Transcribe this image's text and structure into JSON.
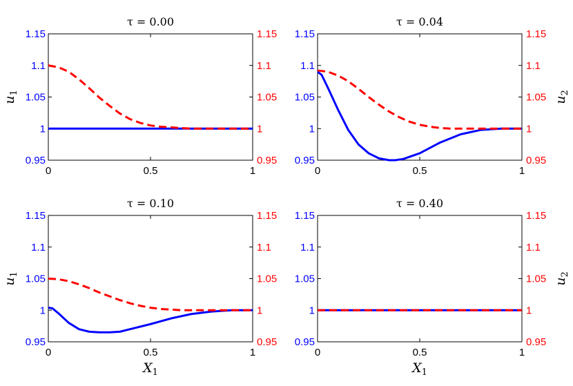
{
  "chart_data": [
    {
      "type": "line",
      "title": "τ = 0.00",
      "x_range": [
        0,
        1
      ],
      "x_ticks": [
        "0",
        "0.5",
        "1"
      ],
      "xlabel": "",
      "ylabel_left": "u",
      "ylabel_left_sub": "1",
      "ylabel_right": "",
      "ylabel_right_sub": "",
      "y_range": [
        0.95,
        1.15
      ],
      "y_ticks": [
        "0.95",
        "1",
        "1.05",
        "1.1",
        "1.15"
      ],
      "grid": false,
      "series": [
        {
          "axis": "left",
          "color": "#0000ff",
          "style": "solid",
          "x": [
            0,
            0.1,
            0.2,
            0.3,
            0.4,
            0.5,
            0.6,
            0.7,
            0.8,
            0.9,
            1
          ],
          "y": [
            1,
            1,
            1,
            1,
            1,
            1,
            1,
            1,
            1,
            1,
            1
          ]
        },
        {
          "axis": "right",
          "color": "#ff0000",
          "style": "dashed",
          "x": [
            0,
            0.05,
            0.1,
            0.15,
            0.2,
            0.25,
            0.3,
            0.35,
            0.4,
            0.45,
            0.5,
            0.55,
            0.6,
            0.65,
            0.7,
            0.8,
            0.9,
            1
          ],
          "y": [
            1.1,
            1.097,
            1.09,
            1.078,
            1.064,
            1.049,
            1.036,
            1.024,
            1.015,
            1.009,
            1.005,
            1.003,
            1.002,
            1.001,
            1,
            1,
            1,
            1
          ]
        }
      ]
    },
    {
      "type": "line",
      "title": "τ = 0.04",
      "x_range": [
        0,
        1
      ],
      "x_ticks": [
        "0",
        "0.5",
        "1"
      ],
      "xlabel": "",
      "ylabel_left": "",
      "ylabel_left_sub": "",
      "ylabel_right": "u",
      "ylabel_right_sub": "2",
      "y_range": [
        0.95,
        1.15
      ],
      "y_ticks": [
        "0.95",
        "1",
        "1.05",
        "1.1",
        "1.15"
      ],
      "grid": false,
      "series": [
        {
          "axis": "left",
          "color": "#0000ff",
          "style": "solid",
          "x": [
            0,
            0.02,
            0.05,
            0.1,
            0.15,
            0.2,
            0.25,
            0.3,
            0.35,
            0.38,
            0.42,
            0.5,
            0.6,
            0.7,
            0.8,
            0.9,
            1
          ],
          "y": [
            1.09,
            1.085,
            1.065,
            1.03,
            0.998,
            0.975,
            0.961,
            0.953,
            0.95,
            0.95,
            0.952,
            0.961,
            0.978,
            0.991,
            0.998,
            1,
            1
          ]
        },
        {
          "axis": "right",
          "color": "#ff0000",
          "style": "dashed",
          "x": [
            0,
            0.05,
            0.1,
            0.15,
            0.2,
            0.25,
            0.3,
            0.35,
            0.4,
            0.45,
            0.5,
            0.55,
            0.6,
            0.65,
            0.7,
            0.8,
            0.9,
            1
          ],
          "y": [
            1.092,
            1.09,
            1.084,
            1.075,
            1.063,
            1.05,
            1.038,
            1.027,
            1.018,
            1.011,
            1.006,
            1.003,
            1.001,
            1,
            1,
            1,
            1,
            1
          ]
        }
      ]
    },
    {
      "type": "line",
      "title": "τ = 0.10",
      "x_range": [
        0,
        1
      ],
      "x_ticks": [
        "0",
        "0.5",
        "1"
      ],
      "xlabel": "X",
      "xlabel_sub": "1",
      "ylabel_left": "u",
      "ylabel_left_sub": "1",
      "ylabel_right": "",
      "ylabel_right_sub": "",
      "y_range": [
        0.95,
        1.15
      ],
      "y_ticks": [
        "0.95",
        "1",
        "1.05",
        "1.1",
        "1.15"
      ],
      "grid": false,
      "series": [
        {
          "axis": "left",
          "color": "#0000ff",
          "style": "solid",
          "x": [
            0,
            0.02,
            0.05,
            0.1,
            0.15,
            0.2,
            0.25,
            0.3,
            0.35,
            0.4,
            0.5,
            0.6,
            0.7,
            0.8,
            0.9,
            1
          ],
          "y": [
            1.004,
            1.003,
            0.995,
            0.98,
            0.97,
            0.966,
            0.965,
            0.965,
            0.966,
            0.97,
            0.978,
            0.987,
            0.994,
            0.998,
            1,
            1
          ]
        },
        {
          "axis": "right",
          "color": "#ff0000",
          "style": "dashed",
          "x": [
            0,
            0.05,
            0.1,
            0.15,
            0.2,
            0.25,
            0.3,
            0.35,
            0.4,
            0.45,
            0.5,
            0.55,
            0.6,
            0.65,
            0.7,
            0.8,
            0.9,
            1
          ],
          "y": [
            1.05,
            1.049,
            1.046,
            1.041,
            1.035,
            1.028,
            1.022,
            1.016,
            1.011,
            1.007,
            1.004,
            1.002,
            1.001,
            1,
            1,
            1,
            1,
            1
          ]
        }
      ]
    },
    {
      "type": "line",
      "title": "τ = 0.40",
      "x_range": [
        0,
        1
      ],
      "x_ticks": [
        "0",
        "0.5",
        "1"
      ],
      "xlabel": "X",
      "xlabel_sub": "1",
      "ylabel_left": "",
      "ylabel_left_sub": "",
      "ylabel_right": "u",
      "ylabel_right_sub": "2",
      "y_range": [
        0.95,
        1.15
      ],
      "y_ticks": [
        "0.95",
        "1",
        "1.05",
        "1.1",
        "1.15"
      ],
      "grid": false,
      "series": [
        {
          "axis": "left",
          "color": "#0000ff",
          "style": "solid",
          "x": [
            0,
            0.25,
            0.5,
            0.75,
            1
          ],
          "y": [
            1,
            1,
            1,
            1,
            1
          ]
        },
        {
          "axis": "right",
          "color": "#ff0000",
          "style": "dashed",
          "x": [
            0,
            0.25,
            0.5,
            0.75,
            1
          ],
          "y": [
            1,
            1,
            1,
            1,
            1
          ]
        }
      ]
    }
  ]
}
